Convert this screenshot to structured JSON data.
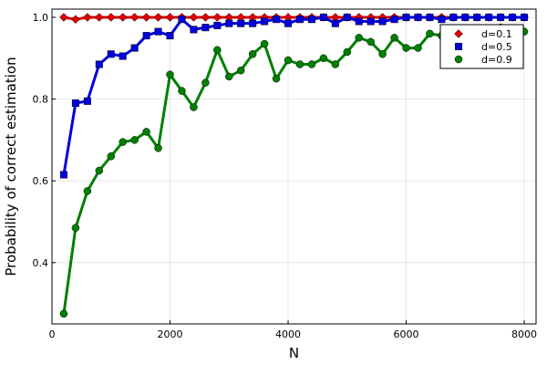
{
  "chart_data": {
    "type": "line",
    "title": "",
    "xlabel": "N",
    "ylabel": "Probability of correct estimation",
    "xlim": [
      0,
      8200
    ],
    "ylim": [
      0.25,
      1.02
    ],
    "xticks": [
      0,
      2000,
      4000,
      6000,
      8000
    ],
    "xtick_labels": [
      "0",
      "2000",
      "4000",
      "6000",
      "8000"
    ],
    "yticks": [
      0.4,
      0.6,
      0.8,
      1.0
    ],
    "ytick_labels": [
      "0.4",
      "0.6",
      "0.8",
      "1.0"
    ],
    "grid": true,
    "legend_position": "top-right",
    "x": [
      200,
      400,
      600,
      800,
      1000,
      1200,
      1400,
      1600,
      1800,
      2000,
      2200,
      2400,
      2600,
      2800,
      3000,
      3200,
      3400,
      3600,
      3800,
      4000,
      4200,
      4400,
      4600,
      4800,
      5000,
      5200,
      5400,
      5600,
      5800,
      6000,
      6200,
      6400,
      6600,
      6800,
      7000,
      7200,
      7400,
      7600,
      7800,
      8000
    ],
    "series": [
      {
        "name": "d=0.1",
        "color": "#e00000",
        "marker": "diamond",
        "values": [
          1.0,
          0.995,
          1.0,
          1.0,
          1.0,
          1.0,
          1.0,
          1.0,
          1.0,
          1.0,
          1.0,
          1.0,
          1.0,
          1.0,
          1.0,
          1.0,
          1.0,
          1.0,
          1.0,
          1.0,
          1.0,
          1.0,
          1.0,
          1.0,
          1.0,
          1.0,
          1.0,
          1.0,
          1.0,
          1.0,
          1.0,
          1.0,
          1.0,
          1.0,
          1.0,
          1.0,
          1.0,
          1.0,
          1.0,
          1.0
        ]
      },
      {
        "name": "d=0.5",
        "color": "#0000e0",
        "marker": "square",
        "values": [
          0.615,
          0.79,
          0.795,
          0.885,
          0.91,
          0.905,
          0.925,
          0.955,
          0.965,
          0.955,
          0.995,
          0.97,
          0.975,
          0.98,
          0.985,
          0.985,
          0.985,
          0.99,
          0.995,
          0.985,
          0.995,
          0.995,
          1.0,
          0.985,
          1.0,
          0.99,
          0.99,
          0.99,
          0.995,
          1.0,
          1.0,
          1.0,
          0.995,
          1.0,
          1.0,
          1.0,
          1.0,
          1.0,
          1.0,
          1.0
        ]
      },
      {
        "name": "d=0.9",
        "color": "#008000",
        "marker": "circle",
        "values": [
          0.275,
          0.485,
          0.575,
          0.625,
          0.66,
          0.695,
          0.7,
          0.72,
          0.68,
          0.86,
          0.82,
          0.78,
          0.84,
          0.92,
          0.855,
          0.87,
          0.91,
          0.935,
          0.85,
          0.895,
          0.885,
          0.885,
          0.9,
          0.885,
          0.915,
          0.95,
          0.94,
          0.91,
          0.95,
          0.925,
          0.925,
          0.96,
          0.955,
          0.96,
          0.965,
          0.97,
          0.97,
          0.975,
          0.965,
          0.965
        ]
      }
    ]
  }
}
